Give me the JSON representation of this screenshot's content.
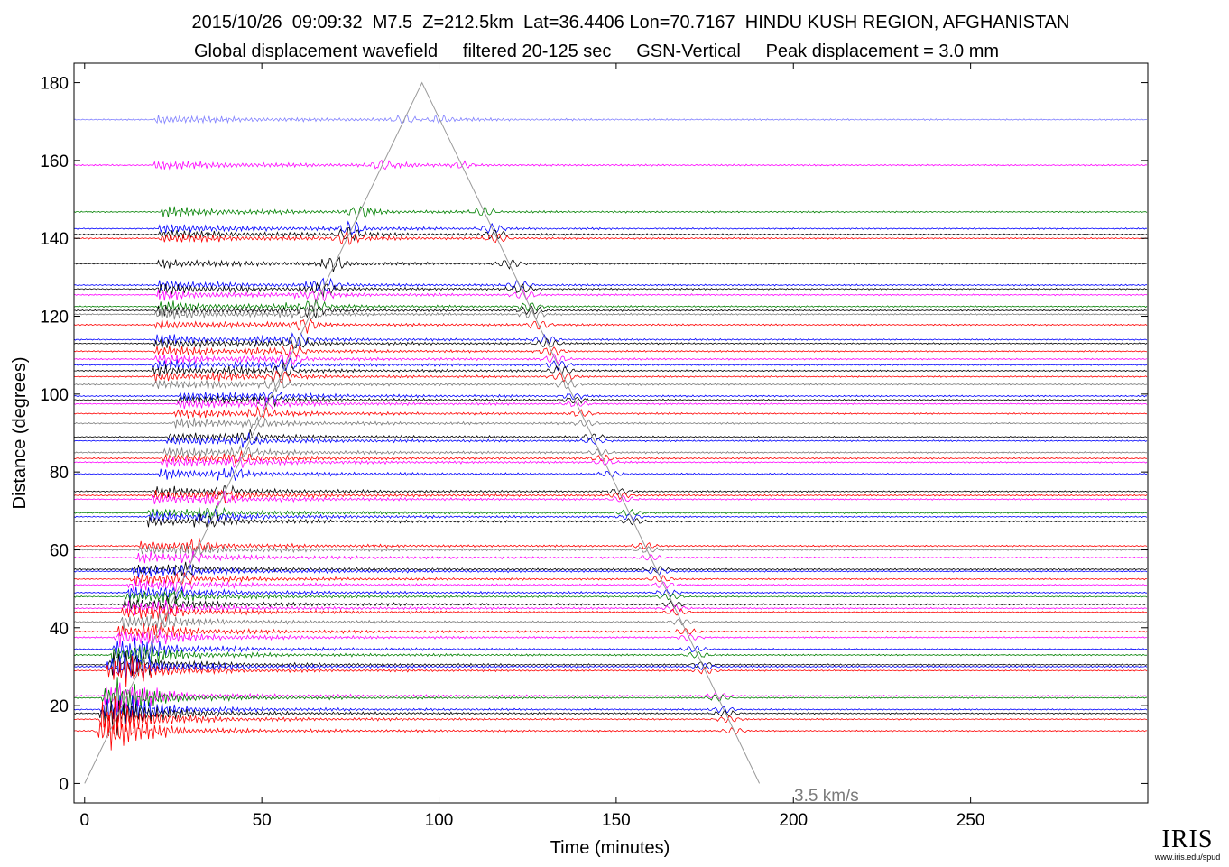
{
  "title_line1": "2015/10/26  09:09:32  M7.5  Z=212.5km  Lat=36.4406 Lon=70.7167  HINDU KUSH REGION, AFGHANISTAN",
  "title_line2": "Global displacement wavefield     filtered 20-125 sec     GSN-Vertical     Peak displacement = 3.0 mm",
  "logo": {
    "name": "IRIS",
    "url": "www.iris.edu/spud"
  },
  "chart_data": {
    "type": "line",
    "title": "2015/10/26  09:09:32  M7.5  Z=212.5km  Lat=36.4406 Lon=70.7167  HINDU KUSH REGION, AFGHANISTAN",
    "subtitle": "Global displacement wavefield     filtered 20-125 sec     GSN-Vertical     Peak displacement = 3.0 mm",
    "xlabel": "Time (minutes)",
    "ylabel": "Distance (degrees)",
    "xlim": [
      -3,
      300
    ],
    "ylim": [
      -5,
      185
    ],
    "xticks": [
      0,
      50,
      100,
      150,
      200,
      250
    ],
    "yticks": [
      0,
      20,
      40,
      60,
      80,
      100,
      120,
      140,
      160,
      180
    ],
    "grid": false,
    "reference_line": {
      "label": "3.5 km/s",
      "points": [
        [
          0,
          0
        ],
        [
          95.2,
          180
        ],
        [
          190.4,
          0
        ]
      ]
    },
    "trace_colors": [
      "#ff0000",
      "#0000ff",
      "#000000",
      "#008000",
      "#ff00ff",
      "#7a7a7a",
      "#8080ff"
    ],
    "traces": [
      {
        "distance": 170.5,
        "color": "#8080ff"
      },
      {
        "distance": 158.8,
        "color": "#ff00ff"
      },
      {
        "distance": 146.8,
        "color": "#008000"
      },
      {
        "distance": 142.5,
        "color": "#0000ff"
      },
      {
        "distance": 141.0,
        "color": "#000000"
      },
      {
        "distance": 140.0,
        "color": "#ff0000"
      },
      {
        "distance": 133.5,
        "color": "#000000"
      },
      {
        "distance": 128.0,
        "color": "#0000ff"
      },
      {
        "distance": 127.0,
        "color": "#000000"
      },
      {
        "distance": 125.5,
        "color": "#ff00ff"
      },
      {
        "distance": 122.5,
        "color": "#008000"
      },
      {
        "distance": 121.5,
        "color": "#000000"
      },
      {
        "distance": 120.5,
        "color": "#7a7a7a"
      },
      {
        "distance": 117.8,
        "color": "#ff0000"
      },
      {
        "distance": 114.0,
        "color": "#0000ff"
      },
      {
        "distance": 113.0,
        "color": "#000000"
      },
      {
        "distance": 111.0,
        "color": "#ff0000"
      },
      {
        "distance": 109.0,
        "color": "#ff00ff"
      },
      {
        "distance": 107.5,
        "color": "#0000ff"
      },
      {
        "distance": 106.0,
        "color": "#000000"
      },
      {
        "distance": 104.5,
        "color": "#ff0000"
      },
      {
        "distance": 102.5,
        "color": "#7a7a7a"
      },
      {
        "distance": 99.5,
        "color": "#0000ff"
      },
      {
        "distance": 98.5,
        "color": "#000000"
      },
      {
        "distance": 97.5,
        "color": "#ff00ff"
      },
      {
        "distance": 95.0,
        "color": "#ff0000"
      },
      {
        "distance": 92.5,
        "color": "#7a7a7a"
      },
      {
        "distance": 89.0,
        "color": "#000000"
      },
      {
        "distance": 88.0,
        "color": "#0000ff"
      },
      {
        "distance": 85.0,
        "color": "#7a7a7a"
      },
      {
        "distance": 83.5,
        "color": "#ff0000"
      },
      {
        "distance": 82.5,
        "color": "#ff00ff"
      },
      {
        "distance": 79.5,
        "color": "#0000ff"
      },
      {
        "distance": 75.0,
        "color": "#000000"
      },
      {
        "distance": 74.0,
        "color": "#ff0000"
      },
      {
        "distance": 73.0,
        "color": "#ff00ff"
      },
      {
        "distance": 69.5,
        "color": "#008000"
      },
      {
        "distance": 68.5,
        "color": "#0000ff"
      },
      {
        "distance": 67.3,
        "color": "#000000"
      },
      {
        "distance": 61.0,
        "color": "#ff0000"
      },
      {
        "distance": 60.0,
        "color": "#7a7a7a"
      },
      {
        "distance": 58.0,
        "color": "#ff00ff"
      },
      {
        "distance": 55.0,
        "color": "#000000"
      },
      {
        "distance": 54.5,
        "color": "#0000ff"
      },
      {
        "distance": 52.5,
        "color": "#ff0000"
      },
      {
        "distance": 51.0,
        "color": "#ff00ff"
      },
      {
        "distance": 49.0,
        "color": "#0000ff"
      },
      {
        "distance": 48.0,
        "color": "#008000"
      },
      {
        "distance": 46.0,
        "color": "#000000"
      },
      {
        "distance": 45.0,
        "color": "#ff00ff"
      },
      {
        "distance": 44.0,
        "color": "#ff0000"
      },
      {
        "distance": 41.5,
        "color": "#7a7a7a"
      },
      {
        "distance": 39.0,
        "color": "#ff0000"
      },
      {
        "distance": 37.5,
        "color": "#ff00ff"
      },
      {
        "distance": 34.5,
        "color": "#0000ff"
      },
      {
        "distance": 33.0,
        "color": "#008000"
      },
      {
        "distance": 30.5,
        "color": "#000000"
      },
      {
        "distance": 30.0,
        "color": "#0000ff"
      },
      {
        "distance": 29.0,
        "color": "#ff0000"
      },
      {
        "distance": 22.5,
        "color": "#ff00ff"
      },
      {
        "distance": 22.0,
        "color": "#008000"
      },
      {
        "distance": 19.0,
        "color": "#0000ff"
      },
      {
        "distance": 18.0,
        "color": "#000000"
      },
      {
        "distance": 16.5,
        "color": "#ff0000"
      },
      {
        "distance": 13.5,
        "color": "#ff0000"
      }
    ]
  }
}
